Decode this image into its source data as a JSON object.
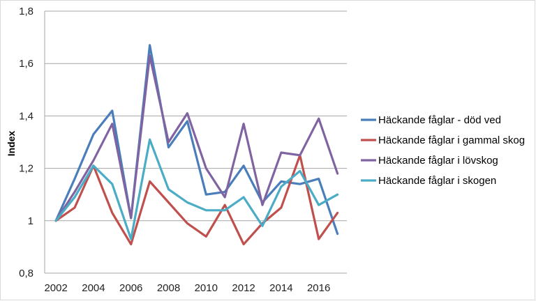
{
  "chart_data": {
    "type": "line",
    "title": "",
    "xlabel": "",
    "ylabel": "Index",
    "x": [
      2002,
      2003,
      2004,
      2005,
      2006,
      2007,
      2008,
      2009,
      2010,
      2011,
      2012,
      2013,
      2014,
      2015,
      2016,
      2017
    ],
    "ylim": [
      0.8,
      1.8
    ],
    "xlim": [
      2001.4,
      2017.5
    ],
    "y_ticks": [
      "0,8",
      "1",
      "1,2",
      "1,4",
      "1,6",
      "1,8"
    ],
    "y_tick_values": [
      0.8,
      1.0,
      1.2,
      1.4,
      1.6,
      1.8
    ],
    "x_ticks": [
      "2002",
      "2004",
      "2006",
      "2008",
      "2010",
      "2012",
      "2014",
      "2016"
    ],
    "x_tick_values": [
      2002,
      2004,
      2006,
      2008,
      2010,
      2012,
      2014,
      2016
    ],
    "grid": "horizontal",
    "legend_position": "right",
    "series": [
      {
        "name": "Häckande fåglar - död ved",
        "color": "#4a7ebb",
        "values": [
          1.0,
          1.16,
          1.33,
          1.42,
          1.01,
          1.67,
          1.28,
          1.38,
          1.1,
          1.11,
          1.21,
          1.07,
          1.15,
          1.14,
          1.16,
          0.95
        ]
      },
      {
        "name": "Häckande fåglar i gammal skog",
        "color": "#c0504d",
        "values": [
          1.0,
          1.05,
          1.21,
          1.03,
          0.91,
          1.15,
          1.07,
          0.99,
          0.94,
          1.06,
          0.91,
          0.99,
          1.05,
          1.25,
          0.93,
          1.03
        ]
      },
      {
        "name": "Häckande fåglar i lövskog",
        "color": "#8064a2",
        "values": [
          1.0,
          1.11,
          1.23,
          1.37,
          1.01,
          1.63,
          1.3,
          1.41,
          1.2,
          1.09,
          1.37,
          1.06,
          1.26,
          1.25,
          1.39,
          1.18
        ]
      },
      {
        "name": "Häckande fåglar i skogen",
        "color": "#4bacc6",
        "values": [
          1.0,
          1.09,
          1.21,
          1.14,
          0.93,
          1.31,
          1.12,
          1.07,
          1.04,
          1.04,
          1.09,
          0.98,
          1.13,
          1.19,
          1.06,
          1.1
        ]
      }
    ]
  }
}
